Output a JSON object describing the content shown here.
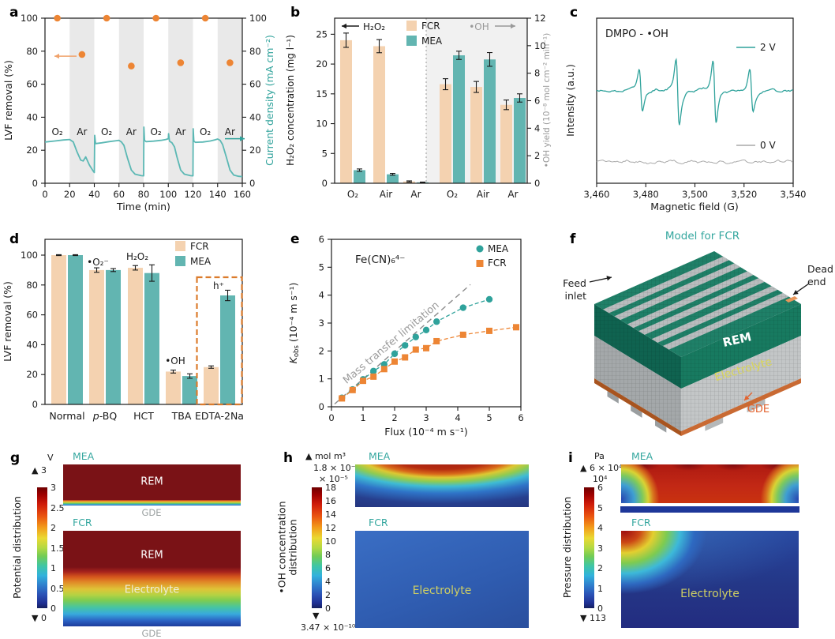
{
  "colors": {
    "teal_line": "#5BB8B4",
    "teal_bar": "#62B5B1",
    "teal_dark": "#2FA29B",
    "teal_text": "#35A79F",
    "orange": "#ED8534",
    "orange_light": "#F0A26B",
    "peach_bar": "#F4D2B0",
    "gray_band": "#E9E9E9",
    "gray_bg": "#F1F1F1",
    "gray_text": "#999999",
    "dark": "#1a1a1a",
    "dashed_box_orange": "#DB7B2C"
  },
  "panels": {
    "a": {
      "letter": "a"
    },
    "b": {
      "letter": "b"
    },
    "c": {
      "letter": "c"
    },
    "d": {
      "letter": "d"
    },
    "e": {
      "letter": "e"
    },
    "f": {
      "letter": "f",
      "title": "Model for FCR",
      "feed_inlet_line1": "Feed",
      "feed_inlet_line2": "inlet",
      "dead_end_line1": "Dead",
      "dead_end_line2": "end",
      "rem": "REM",
      "electrolyte": "Electrolyte",
      "gde": "GDE"
    },
    "g": {
      "letter": "g",
      "title": "Potential distribution",
      "unit": "V",
      "top_arrow": "▲ 3",
      "ticks": [
        "3",
        "2.5",
        "2",
        "1.5",
        "1",
        "0.5",
        "0"
      ],
      "bottom_arrow": "▼ 0",
      "mea_label": "MEA",
      "fcr_label": "FCR",
      "rem": "REM",
      "gde": "GDE",
      "electrolyte": "Electrolyte"
    },
    "h": {
      "letter": "h",
      "title_line1": "•OH concentration",
      "title_line2": "distribution",
      "top_arrow": "▲ mol m³",
      "top_value": "1.8 × 10⁻⁴",
      "scale": "× 10⁻⁵",
      "ticks": [
        "18",
        "16",
        "14",
        "12",
        "10",
        "8",
        "6",
        "4",
        "2",
        "0"
      ],
      "bottom_arrow": "▼",
      "bottom_value": "3.47 × 10⁻¹⁰",
      "mea_label": "MEA",
      "fcr_label": "FCR",
      "electrolyte": "Electrolyte"
    },
    "i": {
      "letter": "i",
      "title": "Pressure distribution",
      "unit": "Pa",
      "top_arrow": "▲ 6 × 10⁴",
      "scale": "10⁴",
      "ticks": [
        "6",
        "5",
        "4",
        "3",
        "2",
        "1",
        "0"
      ],
      "bottom_arrow": "▼ 113",
      "mea_label": "MEA",
      "fcr_label": "FCR",
      "electrolyte": "Electrolyte"
    }
  },
  "chart_data": [
    {
      "panel": "a",
      "type": "line",
      "xlabel": "Time (min)",
      "xlim": [
        0,
        160
      ],
      "xticks": [
        0,
        20,
        40,
        60,
        80,
        100,
        120,
        140,
        160
      ],
      "ylabel_left": "LVF removal (%)",
      "ylim_left": [
        0,
        100
      ],
      "yticks_left": [
        0,
        20,
        40,
        60,
        80,
        100
      ],
      "ylabel_right": "Current density (mA cm⁻²)",
      "ylim_right": [
        0,
        100
      ],
      "yticks_right": [
        0,
        20,
        40,
        60,
        80,
        100
      ],
      "ar_shading_x": [
        [
          20,
          40
        ],
        [
          60,
          80
        ],
        [
          100,
          120
        ],
        [
          140,
          160
        ]
      ],
      "gas_labels": [
        {
          "text": "O₂",
          "x": 10
        },
        {
          "text": "Ar",
          "x": 30
        },
        {
          "text": "O₂",
          "x": 50
        },
        {
          "text": "Ar",
          "x": 70
        },
        {
          "text": "O₂",
          "x": 90
        },
        {
          "text": "Ar",
          "x": 110
        },
        {
          "text": "O₂",
          "x": 130
        },
        {
          "text": "Ar",
          "x": 150
        }
      ],
      "lvf_removal_points": [
        [
          10,
          100
        ],
        [
          30,
          78
        ],
        [
          50,
          100
        ],
        [
          70,
          71
        ],
        [
          90,
          100
        ],
        [
          110,
          73
        ],
        [
          130,
          100
        ],
        [
          150,
          73
        ]
      ],
      "current_density_series": [
        [
          0,
          25
        ],
        [
          8,
          25.6
        ],
        [
          15,
          26.2
        ],
        [
          20,
          26.5
        ],
        [
          23,
          25
        ],
        [
          26,
          19
        ],
        [
          29,
          14
        ],
        [
          31,
          13.5
        ],
        [
          33,
          16
        ],
        [
          36,
          11
        ],
        [
          39,
          7.5
        ],
        [
          40,
          6.5
        ],
        [
          40.3,
          29
        ],
        [
          41,
          24
        ],
        [
          46,
          24.5
        ],
        [
          52,
          25.2
        ],
        [
          58,
          25.8
        ],
        [
          60,
          26
        ],
        [
          62,
          25
        ],
        [
          64,
          23
        ],
        [
          67,
          15
        ],
        [
          70,
          8
        ],
        [
          73,
          5.5
        ],
        [
          78,
          4.6
        ],
        [
          80,
          4.5
        ],
        [
          80.2,
          34
        ],
        [
          80.7,
          26
        ],
        [
          82,
          25.2
        ],
        [
          88,
          25.5
        ],
        [
          94,
          26
        ],
        [
          98,
          26.5
        ],
        [
          100,
          27
        ],
        [
          100.2,
          30
        ],
        [
          101,
          25.5
        ],
        [
          103,
          24.5
        ],
        [
          105,
          22
        ],
        [
          107,
          16
        ],
        [
          110,
          8
        ],
        [
          113,
          5.5
        ],
        [
          118,
          4.6
        ],
        [
          120,
          4.5
        ],
        [
          120.2,
          33
        ],
        [
          120.7,
          25.5
        ],
        [
          122,
          24.8
        ],
        [
          128,
          25
        ],
        [
          134,
          25.6
        ],
        [
          138,
          26.3
        ],
        [
          140,
          26.8
        ],
        [
          142,
          26
        ],
        [
          144,
          23.5
        ],
        [
          147,
          16
        ],
        [
          150,
          8
        ],
        [
          153,
          5
        ],
        [
          157,
          4.2
        ],
        [
          160,
          4
        ]
      ]
    },
    {
      "panel": "b",
      "type": "bar",
      "ylabel_left": "H₂O₂ concentration (mg l⁻¹)",
      "ylim_left": [
        0,
        27.7
      ],
      "yticks_left": [
        0,
        5,
        10,
        15,
        20,
        25
      ],
      "ylabel_right": "•OH yield (10⁻⁸ mol cm⁻² min⁻¹)",
      "ylim_right": [
        0,
        12
      ],
      "yticks_right": [
        0,
        2,
        4,
        6,
        8,
        10,
        12
      ],
      "legend": [
        "FCR",
        "MEA"
      ],
      "annotation_left": "H₂O₂",
      "annotation_right": "•OH",
      "groups": [
        {
          "label": "O₂",
          "axis": "left",
          "FCR": 24.0,
          "FCR_err": 1.2,
          "MEA": 2.2,
          "MEA_err": 0.2
        },
        {
          "label": "Air",
          "axis": "left",
          "FCR": 23.0,
          "FCR_err": 1.1,
          "MEA": 1.5,
          "MEA_err": 0.15
        },
        {
          "label": "Ar",
          "axis": "left",
          "FCR": 0.3,
          "FCR_err": 0.1,
          "MEA": 0.15,
          "MEA_err": 0.05
        },
        {
          "label": "O₂",
          "axis": "right",
          "FCR": 7.2,
          "FCR_err": 0.4,
          "MEA": 9.3,
          "MEA_err": 0.3
        },
        {
          "label": "Air",
          "axis": "right",
          "FCR": 7.0,
          "FCR_err": 0.4,
          "MEA": 9.0,
          "MEA_err": 0.5
        },
        {
          "label": "Ar",
          "axis": "right",
          "FCR": 5.7,
          "FCR_err": 0.35,
          "MEA": 6.2,
          "MEA_err": 0.3
        }
      ]
    },
    {
      "panel": "c",
      "type": "line-spectrum",
      "annotation": "DMPO - •OH",
      "xlabel": "Magnetic field (G)",
      "ylabel": "Intensity (a.u.)",
      "xlim": [
        3460,
        3540
      ],
      "xtick_labels": [
        "3,460",
        "3,480",
        "3,500",
        "3,520",
        "3,540"
      ],
      "series": [
        {
          "name": "2 V",
          "peak_centers": [
            3478,
            3493,
            3508,
            3523
          ],
          "peak_amplitudes": [
            0.62,
            1.0,
            0.95,
            0.62
          ]
        },
        {
          "name": "0 V",
          "peak_centers": [],
          "peak_amplitudes": []
        }
      ]
    },
    {
      "panel": "d",
      "type": "bar",
      "ylabel": "LVF removal (%)",
      "ylim": [
        0,
        110
      ],
      "yticks": [
        0,
        20,
        40,
        60,
        80,
        100
      ],
      "legend": [
        "FCR",
        "MEA"
      ],
      "categories": [
        "Normal",
        "p-BQ",
        "HCT",
        "TBA",
        "EDTA-2Na"
      ],
      "series": [
        {
          "name": "FCR",
          "values": [
            100,
            90,
            91.5,
            22,
            25
          ],
          "errors": [
            0.3,
            1.5,
            1.5,
            1.0,
            0.8
          ]
        },
        {
          "name": "MEA",
          "values": [
            100,
            90,
            88,
            19,
            73
          ],
          "errors": [
            0.3,
            1.0,
            5.5,
            1.5,
            3.5
          ]
        }
      ],
      "annotations": [
        {
          "text": "•O₂⁻",
          "cat": 1
        },
        {
          "text": "H₂O₂",
          "cat": 2
        },
        {
          "text": "•OH",
          "cat": 3
        },
        {
          "text": "h⁺",
          "cat": 4
        }
      ],
      "highlight_box_category": "EDTA-2Na"
    },
    {
      "panel": "e",
      "type": "scatter",
      "xlabel": "Flux (10⁻⁴ m s⁻¹)",
      "ylabel": "K_obs (10⁻⁴ m s⁻¹)",
      "xlim": [
        0,
        6
      ],
      "ylim": [
        0,
        6
      ],
      "xticks": [
        0,
        1,
        2,
        3,
        4,
        5,
        6
      ],
      "yticks": [
        0,
        1,
        2,
        3,
        4,
        5,
        6
      ],
      "annotation": "Fe(CN)₆⁴⁻",
      "diagonal_label": "Mass transfer limitation",
      "diagonal": [
        [
          0.1,
          0.1
        ],
        [
          4.4,
          4.38
        ]
      ],
      "series": [
        {
          "name": "MEA",
          "marker": "circle",
          "x": [
            0.33,
            0.67,
            1.0,
            1.33,
            1.67,
            2.0,
            2.33,
            2.67,
            3.0,
            3.33,
            4.17,
            5.0
          ],
          "y": [
            0.32,
            0.62,
            0.98,
            1.28,
            1.52,
            1.9,
            2.2,
            2.5,
            2.75,
            3.05,
            3.55,
            3.85
          ]
        },
        {
          "name": "FCR",
          "marker": "square",
          "x": [
            0.33,
            0.67,
            1.0,
            1.33,
            1.67,
            2.0,
            2.33,
            2.67,
            3.0,
            3.33,
            4.17,
            5.0,
            5.85
          ],
          "y": [
            0.3,
            0.6,
            0.93,
            1.08,
            1.35,
            1.62,
            1.77,
            2.05,
            2.1,
            2.35,
            2.58,
            2.72,
            2.85
          ]
        }
      ]
    }
  ]
}
